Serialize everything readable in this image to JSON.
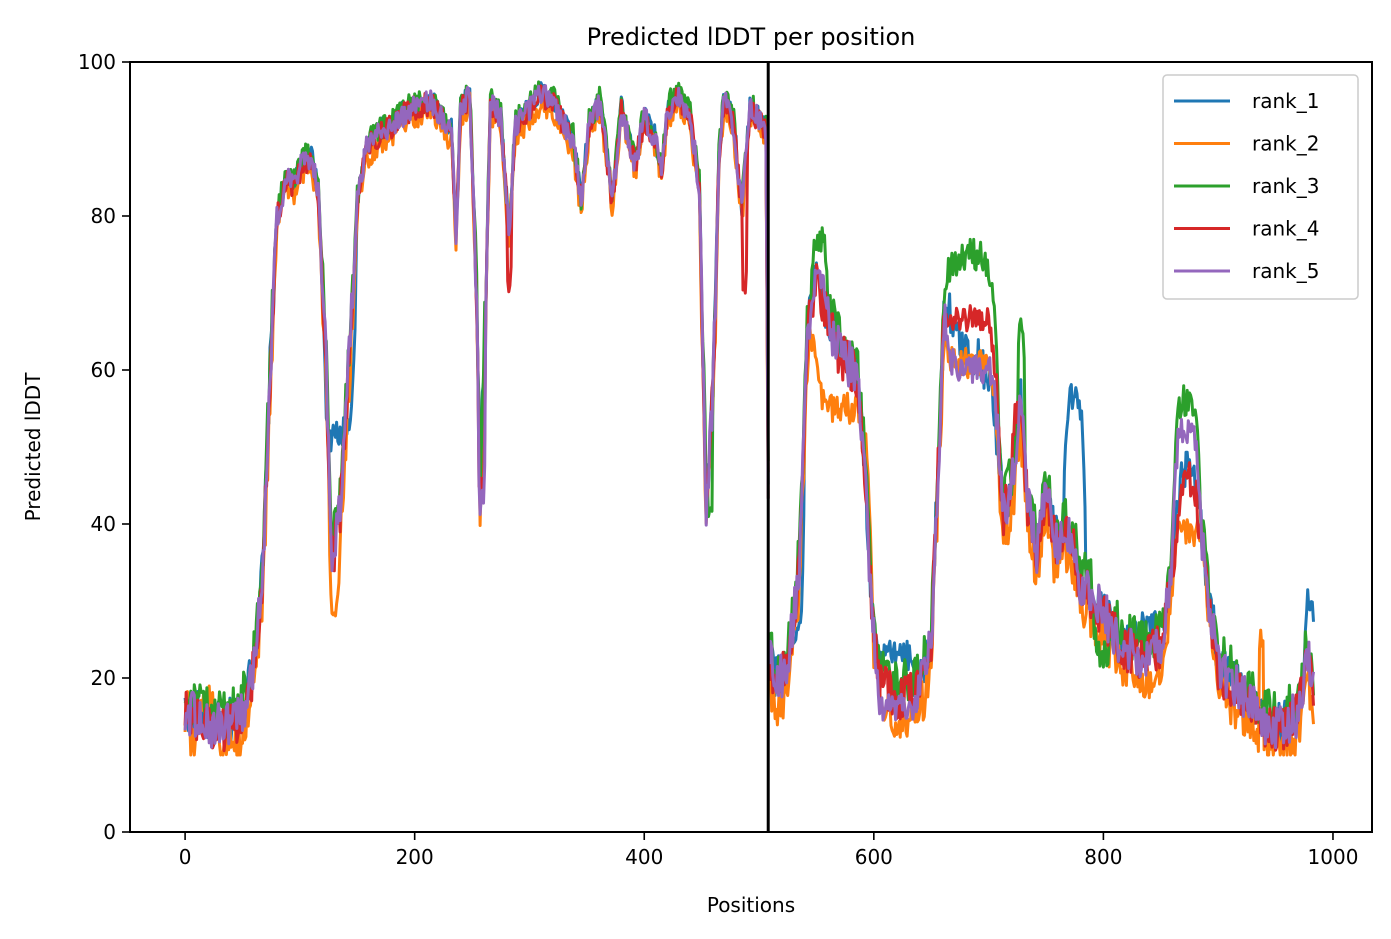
{
  "chart_data": {
    "type": "line",
    "title": "Predicted lDDT per position",
    "xlabel": "Positions",
    "ylabel": "Predicted lDDT",
    "xlim": [
      -48,
      1034
    ],
    "ylim": [
      0,
      100
    ],
    "xticks": [
      0,
      200,
      400,
      600,
      800,
      1000
    ],
    "yticks": [
      0,
      20,
      40,
      60,
      80,
      100
    ],
    "vline_x": 508,
    "grid": false,
    "legend_position": "top-right",
    "series": [
      {
        "name": "rank_1",
        "color": "#1f77b4",
        "offset": 0,
        "mods": [
          [
            765,
            785,
            57
          ],
          [
            120,
            150,
            52
          ],
          [
            525,
            540,
            26
          ],
          [
            600,
            640,
            23
          ],
          [
            820,
            860,
            27
          ],
          [
            975,
            985,
            30
          ]
        ]
      },
      {
        "name": "rank_2",
        "color": "#ff7f0e",
        "offset": -3.5,
        "mods": [
          [
            545,
            600,
            55
          ],
          [
            125,
            135,
            30
          ],
          [
            660,
            710,
            61
          ],
          [
            860,
            890,
            39
          ],
          [
            935,
            940,
            26
          ],
          [
            10,
            30,
            17
          ],
          [
            0,
            4,
            19
          ]
        ]
      },
      {
        "name": "rank_3",
        "color": "#2ca02c",
        "offset": 1.2,
        "mods": [
          [
            660,
            710,
            75
          ],
          [
            545,
            560,
            77
          ],
          [
            725,
            732,
            65
          ],
          [
            860,
            885,
            56
          ],
          [
            455,
            460,
            41
          ],
          [
            790,
            810,
            23
          ]
        ]
      },
      {
        "name": "rank_4",
        "color": "#d62728",
        "offset": -0.8,
        "mods": [
          [
            660,
            710,
            67
          ],
          [
            280,
            285,
            72
          ],
          [
            485,
            490,
            69
          ],
          [
            255,
            262,
            45
          ],
          [
            720,
            730,
            54
          ],
          [
            900,
            920,
            18
          ]
        ]
      },
      {
        "name": "rank_5",
        "color": "#9467bd",
        "offset": -0.5,
        "mods": [
          [
            660,
            710,
            60
          ],
          [
            545,
            560,
            71
          ],
          [
            255,
            262,
            43
          ],
          [
            600,
            640,
            16
          ],
          [
            860,
            885,
            52
          ]
        ]
      }
    ],
    "profile": [
      [
        0,
        16
      ],
      [
        10,
        15.5
      ],
      [
        20,
        14.5
      ],
      [
        35,
        14
      ],
      [
        50,
        16
      ],
      [
        60,
        22
      ],
      [
        68,
        35
      ],
      [
        74,
        60
      ],
      [
        80,
        80
      ],
      [
        88,
        85
      ],
      [
        95,
        84
      ],
      [
        102,
        87
      ],
      [
        110,
        88
      ],
      [
        116,
        83
      ],
      [
        122,
        65
      ],
      [
        128,
        36
      ],
      [
        135,
        42
      ],
      [
        143,
        62
      ],
      [
        150,
        82
      ],
      [
        158,
        89
      ],
      [
        170,
        91
      ],
      [
        180,
        92
      ],
      [
        195,
        94
      ],
      [
        215,
        95
      ],
      [
        232,
        91
      ],
      [
        236,
        78
      ],
      [
        240,
        94
      ],
      [
        248,
        96
      ],
      [
        254,
        70
      ],
      [
        257,
        44
      ],
      [
        262,
        70
      ],
      [
        266,
        95
      ],
      [
        275,
        93
      ],
      [
        282,
        78
      ],
      [
        288,
        92
      ],
      [
        300,
        94
      ],
      [
        310,
        96
      ],
      [
        320,
        95
      ],
      [
        338,
        90
      ],
      [
        345,
        82
      ],
      [
        352,
        92
      ],
      [
        362,
        95
      ],
      [
        372,
        82
      ],
      [
        380,
        94
      ],
      [
        392,
        87
      ],
      [
        400,
        93
      ],
      [
        410,
        90
      ],
      [
        415,
        86
      ],
      [
        420,
        94
      ],
      [
        430,
        96
      ],
      [
        440,
        93
      ],
      [
        448,
        84
      ],
      [
        454,
        43
      ],
      [
        460,
        58
      ],
      [
        465,
        88
      ],
      [
        470,
        96
      ],
      [
        478,
        92
      ],
      [
        485,
        81
      ],
      [
        492,
        94
      ],
      [
        500,
        93
      ],
      [
        506,
        91
      ],
      [
        509,
        23
      ],
      [
        515,
        20
      ],
      [
        525,
        22
      ],
      [
        535,
        35
      ],
      [
        542,
        65
      ],
      [
        550,
        73
      ],
      [
        560,
        67
      ],
      [
        570,
        63
      ],
      [
        585,
        60
      ],
      [
        592,
        48
      ],
      [
        598,
        30
      ],
      [
        605,
        20
      ],
      [
        620,
        18
      ],
      [
        640,
        19
      ],
      [
        650,
        25
      ],
      [
        656,
        48
      ],
      [
        662,
        70
      ],
      [
        672,
        64
      ],
      [
        685,
        62
      ],
      [
        700,
        60
      ],
      [
        708,
        50
      ],
      [
        713,
        42
      ],
      [
        720,
        45
      ],
      [
        728,
        56
      ],
      [
        734,
        43
      ],
      [
        742,
        37
      ],
      [
        750,
        45
      ],
      [
        758,
        38
      ],
      [
        770,
        40
      ],
      [
        780,
        33
      ],
      [
        790,
        31
      ],
      [
        800,
        29
      ],
      [
        815,
        25
      ],
      [
        835,
        23
      ],
      [
        850,
        25
      ],
      [
        860,
        35
      ],
      [
        870,
        48
      ],
      [
        880,
        45
      ],
      [
        890,
        33
      ],
      [
        900,
        22
      ],
      [
        912,
        20
      ],
      [
        925,
        18
      ],
      [
        940,
        15
      ],
      [
        955,
        14
      ],
      [
        970,
        16
      ],
      [
        978,
        24
      ],
      [
        983,
        19
      ]
    ]
  }
}
